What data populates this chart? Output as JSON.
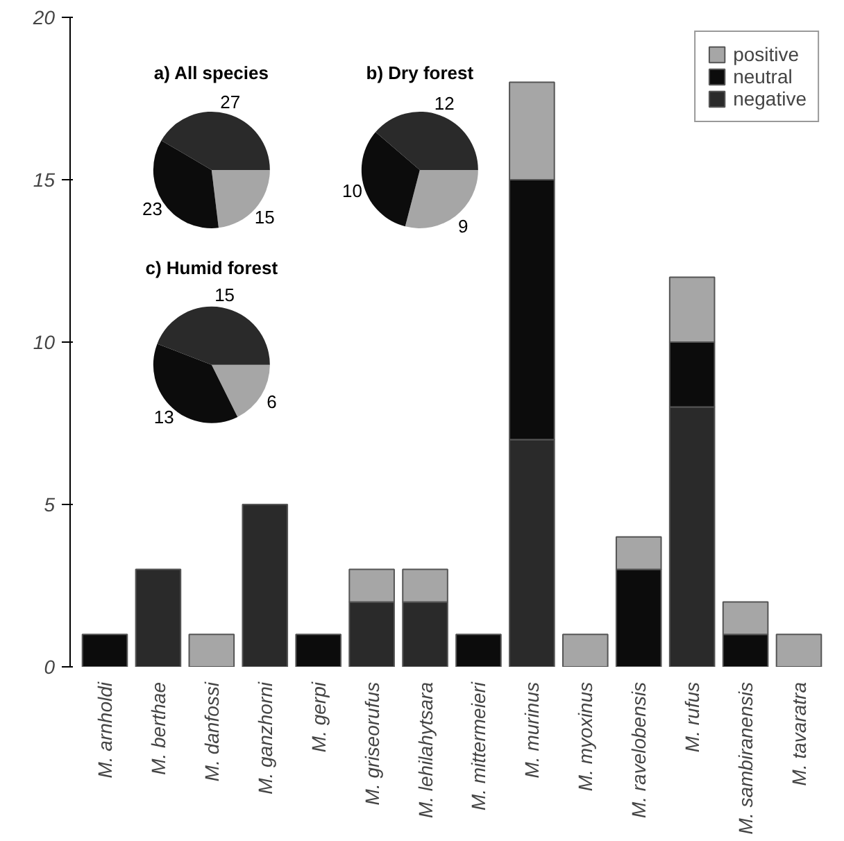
{
  "chart_data": [
    {
      "type": "bar",
      "stacked": true,
      "categories": [
        "M. arnholdi",
        "M. berthae",
        "M. danfossi",
        "M. ganzhorni",
        "M. gerpi",
        "M. griseorufus",
        "M. lehilahytsara",
        "M. mittermeieri",
        "M. murinus",
        "M. myoxinus",
        "M. ravelobensis",
        "M. rufus",
        "M. sambiranensis",
        "M. tavaratra"
      ],
      "series": [
        {
          "name": "negative",
          "color": "#2a2a2a",
          "values": [
            0,
            3,
            0,
            5,
            0,
            2,
            2,
            0,
            7,
            0,
            0,
            8,
            0,
            0
          ]
        },
        {
          "name": "neutral",
          "color": "#0c0c0c",
          "values": [
            1,
            0,
            0,
            0,
            1,
            0,
            0,
            1,
            8,
            0,
            3,
            2,
            1,
            0
          ]
        },
        {
          "name": "positive",
          "color": "#a6a6a6",
          "values": [
            0,
            0,
            1,
            0,
            0,
            1,
            1,
            0,
            3,
            1,
            1,
            2,
            1,
            1
          ]
        }
      ],
      "ylim": [
        0,
        20
      ],
      "yticks": [
        0,
        5,
        10,
        15,
        20
      ],
      "legend": "top right",
      "grid": false
    },
    {
      "type": "pie",
      "title": "a) All species",
      "categories": [
        null,
        null,
        null
      ],
      "values": [
        15,
        23,
        27
      ],
      "colors": [
        "#a6a6a6",
        "#0c0c0c",
        "#2a2a2a"
      ],
      "data_labels": true
    },
    {
      "type": "pie",
      "title": "b) Dry forest",
      "categories": [
        null,
        null,
        null
      ],
      "values": [
        9,
        10,
        12
      ],
      "colors": [
        "#a6a6a6",
        "#0c0c0c",
        "#2a2a2a"
      ],
      "data_labels": true
    },
    {
      "type": "pie",
      "title": "c) Humid forest",
      "categories": [
        null,
        null,
        null
      ],
      "values": [
        6,
        13,
        15
      ],
      "colors": [
        "#a6a6a6",
        "#0c0c0c",
        "#2a2a2a"
      ],
      "data_labels": true
    }
  ]
}
